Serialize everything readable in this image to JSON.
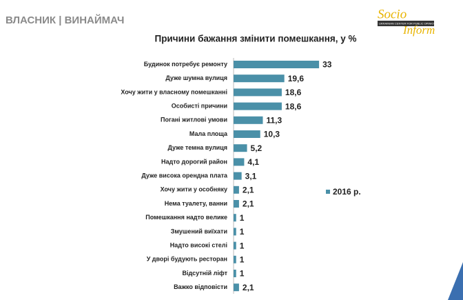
{
  "header": {
    "title": "ВЛАСНИК | ВИНАЙМАЧ",
    "logo_top": "Socio",
    "logo_bottom": "Inform",
    "logo_tagline": "UKRAINIAN CENTER FOR PUBLIC OPINION RESEARCH"
  },
  "chart_data": {
    "type": "bar",
    "orientation": "horizontal",
    "title": "Причини бажання змінити помешкання, у %",
    "categories": [
      "Будинок потребує ремонту",
      "Дуже шумна вулиця",
      "Хочу жити у власному помешканні",
      "Особисті причини",
      "Погані житлові умови",
      "Мала площа",
      "Дуже темна вулиця",
      "Надто дорогий район",
      "Дуже висока орендна плата",
      "Хочу жити у особняку",
      "Нема туалету, ванни",
      "Помешкання надто велике",
      "Змушений виїхати",
      "Надто високі стелі",
      "У дворі будують ресторан",
      "Відсутній ліфт",
      "Важко відповісти"
    ],
    "series": [
      {
        "name": "2016 р.",
        "color": "#4a90a8",
        "values": [
          33,
          19.6,
          18.6,
          18.6,
          11.3,
          10.3,
          5.2,
          4.1,
          3.1,
          2.1,
          2.1,
          1,
          1,
          1,
          1,
          1,
          2.1
        ],
        "value_labels": [
          "33",
          "19,6",
          "18,6",
          "18,6",
          "11,3",
          "10,3",
          "5,2",
          "4,1",
          "3,1",
          "2,1",
          "2,1",
          "1",
          "1",
          "1",
          "1",
          "1",
          "2,1"
        ]
      }
    ],
    "legend": "right"
  }
}
